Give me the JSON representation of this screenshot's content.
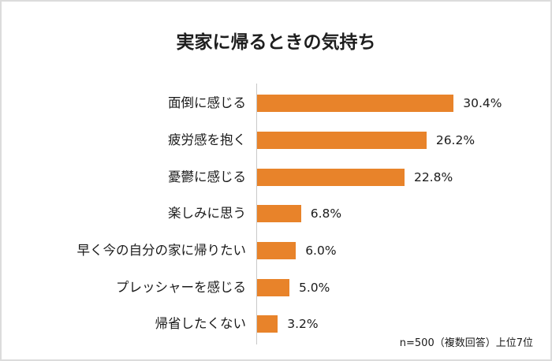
{
  "chart_data": {
    "type": "bar",
    "orientation": "horizontal",
    "title": "実家に帰るときの気持ち",
    "categories": [
      "面倒に感じる",
      "疲労感を抱く",
      "憂鬱に感じる",
      "楽しみに思う",
      "早く今の自分の家に帰りたい",
      "プレッシャーを感じる",
      "帰省したくない"
    ],
    "values": [
      30.4,
      26.2,
      22.8,
      6.8,
      6.0,
      5.0,
      3.2
    ],
    "value_labels": [
      "30.4%",
      "26.2%",
      "22.8%",
      "6.8%",
      "6.0%",
      "5.0%",
      "3.2%"
    ],
    "unit": "%",
    "xlabel": "",
    "ylabel": "",
    "grid": false,
    "legend": null,
    "bar_color": "#e8832a",
    "annotation": "n=500（複数回答）上位7位"
  },
  "colors": {
    "bar": "#e8832a",
    "axis": "#c8c8c8",
    "border": "#dcdcdc",
    "text": "#1a1a1a"
  }
}
